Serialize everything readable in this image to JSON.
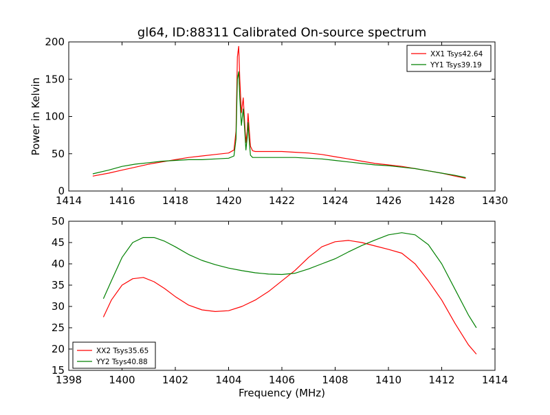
{
  "figure": {
    "title": "gl64, ID:88311 Calibrated On-source spectrum",
    "colors": {
      "red": "#ff0000",
      "green": "#008000"
    }
  },
  "chart_data": [
    {
      "type": "line",
      "ylabel": "Power in Kelvin",
      "xlim": [
        1414,
        1430
      ],
      "ylim": [
        0,
        200
      ],
      "xticks": [
        1414,
        1416,
        1418,
        1420,
        1422,
        1424,
        1426,
        1428,
        1430
      ],
      "yticks": [
        0,
        50,
        100,
        150,
        200
      ],
      "legend_position": "top-right",
      "series": [
        {
          "name": "XX1 Tsys42.64",
          "color": "#ff0000",
          "x": [
            1414.9,
            1415.5,
            1416.0,
            1416.5,
            1417.0,
            1417.5,
            1418.0,
            1418.5,
            1419.0,
            1419.5,
            1420.0,
            1420.2,
            1420.28,
            1420.33,
            1420.38,
            1420.42,
            1420.48,
            1420.55,
            1420.6,
            1420.65,
            1420.7,
            1420.73,
            1420.77,
            1420.82,
            1420.9,
            1421.0,
            1421.5,
            1422.0,
            1422.5,
            1423.0,
            1423.5,
            1424.0,
            1424.5,
            1425.0,
            1425.5,
            1426.0,
            1426.5,
            1427.0,
            1427.5,
            1428.0,
            1428.5,
            1428.9
          ],
          "y": [
            20,
            24,
            28,
            32,
            36,
            39,
            42,
            45,
            47,
            49,
            51,
            55,
            80,
            180,
            194,
            150,
            105,
            125,
            95,
            65,
            80,
            104,
            85,
            60,
            54,
            53,
            53,
            53,
            52,
            51,
            49,
            46,
            43,
            40,
            37,
            35,
            33,
            30,
            27,
            24,
            20,
            17
          ]
        },
        {
          "name": "YY1 Tsys39.19",
          "color": "#008000",
          "x": [
            1414.9,
            1415.5,
            1416.0,
            1416.5,
            1417.0,
            1417.5,
            1418.0,
            1418.5,
            1419.0,
            1419.5,
            1420.0,
            1420.2,
            1420.28,
            1420.33,
            1420.38,
            1420.42,
            1420.48,
            1420.55,
            1420.6,
            1420.65,
            1420.7,
            1420.73,
            1420.77,
            1420.82,
            1420.9,
            1421.0,
            1421.5,
            1422.0,
            1422.5,
            1423.0,
            1423.5,
            1424.0,
            1424.5,
            1425.0,
            1425.5,
            1426.0,
            1426.5,
            1427.0,
            1427.5,
            1428.0,
            1428.5,
            1428.9
          ],
          "y": [
            23,
            28,
            33,
            36,
            38,
            40,
            41,
            42,
            42,
            43,
            44,
            47,
            70,
            150,
            160,
            125,
            88,
            110,
            85,
            55,
            72,
            92,
            70,
            48,
            45,
            45,
            45,
            45,
            45,
            44,
            43,
            41,
            39,
            37,
            35,
            34,
            32,
            30,
            27,
            24,
            21,
            18
          ]
        }
      ]
    },
    {
      "type": "line",
      "xlabel": "Frequency (MHz)",
      "xlim": [
        1398,
        1414
      ],
      "ylim": [
        15,
        50
      ],
      "xticks": [
        1398,
        1400,
        1402,
        1404,
        1406,
        1408,
        1410,
        1412,
        1414
      ],
      "yticks": [
        15,
        20,
        25,
        30,
        35,
        40,
        45,
        50
      ],
      "legend_position": "bottom-left",
      "series": [
        {
          "name": "XX2 Tsys35.65",
          "color": "#ff0000",
          "x": [
            1399.3,
            1399.6,
            1400.0,
            1400.4,
            1400.8,
            1401.2,
            1401.6,
            1402.0,
            1402.5,
            1403.0,
            1403.5,
            1404.0,
            1404.5,
            1405.0,
            1405.5,
            1406.0,
            1406.5,
            1407.0,
            1407.5,
            1408.0,
            1408.5,
            1409.0,
            1409.5,
            1410.0,
            1410.5,
            1411.0,
            1411.5,
            1412.0,
            1412.5,
            1413.0,
            1413.3
          ],
          "y": [
            27.5,
            31.5,
            35,
            36.5,
            36.8,
            35.8,
            34.2,
            32.3,
            30.3,
            29.2,
            28.8,
            29,
            30,
            31.5,
            33.5,
            36,
            38.5,
            41.5,
            44,
            45.2,
            45.5,
            45,
            44.2,
            43.4,
            42.5,
            40,
            36,
            31.5,
            26,
            21,
            18.8
          ]
        },
        {
          "name": "YY2 Tsys40.88",
          "color": "#008000",
          "x": [
            1399.3,
            1399.6,
            1400.0,
            1400.4,
            1400.8,
            1401.2,
            1401.6,
            1402.0,
            1402.5,
            1403.0,
            1403.5,
            1404.0,
            1404.5,
            1405.0,
            1405.5,
            1406.0,
            1406.5,
            1407.0,
            1407.5,
            1408.0,
            1408.5,
            1409.0,
            1409.5,
            1410.0,
            1410.5,
            1411.0,
            1411.5,
            1412.0,
            1412.5,
            1413.0,
            1413.3
          ],
          "y": [
            31.8,
            36,
            41.5,
            45,
            46.2,
            46.2,
            45.3,
            44,
            42.2,
            40.8,
            39.8,
            39,
            38.4,
            37.9,
            37.6,
            37.5,
            37.8,
            38.8,
            40,
            41.2,
            42.8,
            44.3,
            45.6,
            46.8,
            47.3,
            46.8,
            44.5,
            40,
            34,
            28,
            25
          ]
        }
      ]
    }
  ]
}
